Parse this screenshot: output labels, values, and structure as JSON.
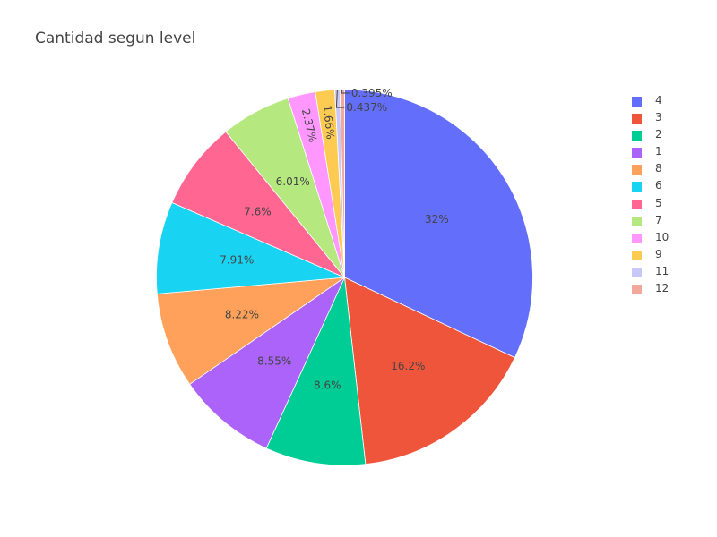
{
  "chart_data": {
    "type": "pie",
    "title": "Cantidad segun level",
    "legend_position": "right",
    "slices": [
      {
        "label": "4",
        "value": 32.0,
        "text": "32%",
        "color": "#636efa"
      },
      {
        "label": "3",
        "value": 16.2,
        "text": "16.2%",
        "color": "#EF553B"
      },
      {
        "label": "2",
        "value": 8.6,
        "text": "8.6%",
        "color": "#00cc96"
      },
      {
        "label": "1",
        "value": 8.55,
        "text": "8.55%",
        "color": "#ab63fa"
      },
      {
        "label": "8",
        "value": 8.22,
        "text": "8.22%",
        "color": "#FFA15A"
      },
      {
        "label": "6",
        "value": 7.91,
        "text": "7.91%",
        "color": "#19d3f3"
      },
      {
        "label": "5",
        "value": 7.6,
        "text": "7.6%",
        "color": "#FF6692"
      },
      {
        "label": "7",
        "value": 6.01,
        "text": "6.01%",
        "color": "#B6E880"
      },
      {
        "label": "10",
        "value": 2.37,
        "text": "2.37%",
        "color": "#FF97FF"
      },
      {
        "label": "9",
        "value": 1.66,
        "text": "1.66%",
        "color": "#FECB52"
      },
      {
        "label": "11",
        "value": 0.437,
        "text": "0.437%",
        "color": "#c8c8f8"
      },
      {
        "label": "12",
        "value": 0.395,
        "text": "0.395%",
        "color": "#f2a89a"
      }
    ]
  }
}
